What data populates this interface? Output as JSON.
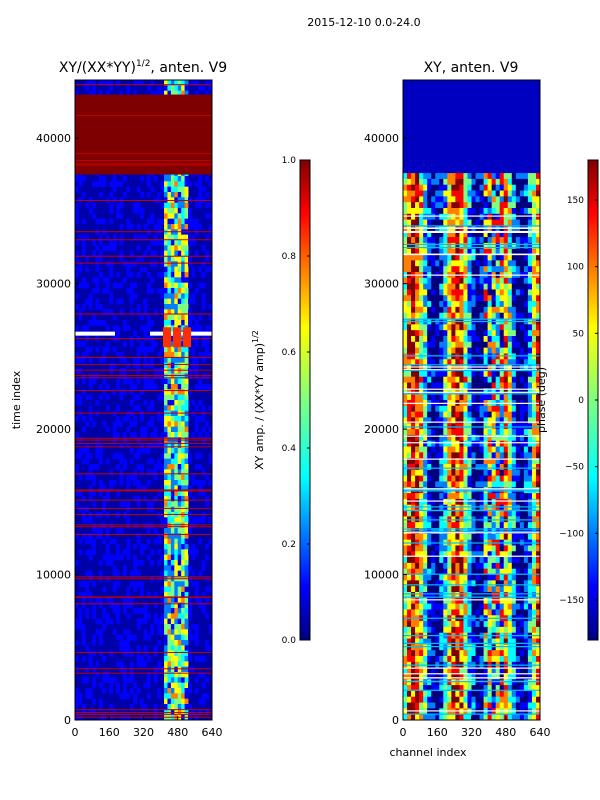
{
  "figure": {
    "suptitle": "2015-12-10 0.0-24.0"
  },
  "colors": {
    "jet": [
      "#00007f",
      "#0000ff",
      "#007fff",
      "#00ffff",
      "#7fff7f",
      "#ffff00",
      "#ff7f00",
      "#ff0000",
      "#7f0000"
    ]
  },
  "chart_data": [
    {
      "type": "heatmap",
      "title_text": "XY/(XX*YY)",
      "title_exp": "1/2",
      "title_suffix": ", anten. V9",
      "xlabel": "",
      "ylabel": "time index",
      "xlim": [
        0,
        640
      ],
      "ylim": [
        0,
        44000
      ],
      "xticks": [
        "0",
        "160",
        "320",
        "480",
        "640"
      ],
      "yticks": [
        "0",
        "10000",
        "20000",
        "30000",
        "40000"
      ],
      "colorbar": {
        "label_text": "XY amp. / (XX*YY amp)",
        "label_exp": "1/2",
        "range": [
          0,
          1
        ],
        "ticks": [
          "0.0",
          "0.2",
          "0.4",
          "0.6",
          "0.8",
          "1.0"
        ]
      }
    },
    {
      "type": "heatmap",
      "title_text": "XY, anten. V9",
      "xlabel": "channel index",
      "ylabel": "",
      "xlim": [
        0,
        640
      ],
      "ylim": [
        0,
        44000
      ],
      "xticks": [
        "0",
        "160",
        "320",
        "480",
        "640"
      ],
      "yticks": [
        "0",
        "10000",
        "20000",
        "30000",
        "40000"
      ],
      "colorbar": {
        "label_text": "phase (deg)",
        "range": [
          -180,
          180
        ],
        "ticks": [
          "−150",
          "−100",
          "−50",
          "0",
          "50",
          "100",
          "150"
        ]
      }
    }
  ]
}
